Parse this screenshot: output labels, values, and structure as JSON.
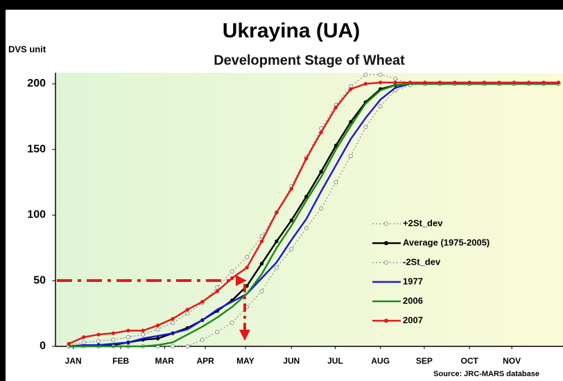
{
  "chart_data": {
    "type": "line",
    "title": "Ukrayina (UA)",
    "subtitle": "Development Stage of Wheat",
    "y_label": "DVS unit",
    "source": "Source: JRC-MARS database",
    "x": [
      1,
      2,
      3,
      4,
      5,
      6,
      7,
      8,
      9,
      10,
      11,
      12,
      13,
      14,
      15,
      16,
      17,
      18,
      19,
      20,
      21,
      22,
      23,
      24,
      25,
      26,
      27,
      28,
      29,
      30,
      31,
      32,
      33,
      34
    ],
    "xlim": [
      0.1,
      34.3
    ],
    "xticks": [
      {
        "value": 1.3,
        "label": "JAN"
      },
      {
        "value": 4.5,
        "label": "FEB"
      },
      {
        "value": 7.45,
        "label": "MAR"
      },
      {
        "value": 10.2,
        "label": "APR"
      },
      {
        "value": 12.9,
        "label": "MAY"
      },
      {
        "value": 16.0,
        "label": "JUN"
      },
      {
        "value": 18.95,
        "label": "JUL"
      },
      {
        "value": 22.0,
        "label": "AUG"
      },
      {
        "value": 24.95,
        "label": "SEP"
      },
      {
        "value": 28.0,
        "label": "OCT"
      },
      {
        "value": 30.85,
        "label": "NOV"
      }
    ],
    "ylim": [
      0,
      200
    ],
    "yticks": [
      0,
      50,
      100,
      150,
      200
    ],
    "series": [
      {
        "name": "+2St_dev",
        "color": "#888888",
        "values": [
          1,
          3,
          4,
          5,
          7,
          9,
          13,
          18,
          25,
          33,
          45,
          57,
          68,
          84,
          102,
          122,
          144,
          166,
          184,
          198,
          207,
          207,
          204,
          200,
          200,
          200,
          200,
          200,
          200,
          200,
          200,
          200,
          200,
          200
        ]
      },
      {
        "name": "Average (1975-2005)",
        "color": "#000000",
        "values": [
          0,
          0,
          1,
          1,
          3,
          5,
          6,
          10,
          14,
          20,
          27,
          35,
          46,
          63,
          80,
          96,
          114,
          133,
          153,
          171,
          186,
          196,
          199,
          200,
          200,
          200,
          200,
          200,
          200,
          200,
          200,
          200,
          200,
          200
        ]
      },
      {
        "name": "-2St_dev",
        "color": "#888888",
        "values": [
          0,
          0,
          0,
          0,
          0,
          0,
          0,
          0,
          0,
          5,
          11,
          18,
          30,
          42,
          60,
          74,
          90,
          105,
          125,
          145,
          167,
          183,
          195,
          199,
          200,
          200,
          200,
          200,
          200,
          200,
          200,
          200,
          200,
          200
        ]
      },
      {
        "name": "1977",
        "color": "#1a1adc",
        "values": [
          0,
          1,
          1,
          2,
          3,
          6,
          8,
          10,
          13,
          20,
          28,
          34,
          40,
          52,
          64,
          81,
          97,
          118,
          138,
          158,
          174,
          188,
          197,
          200,
          200,
          200,
          200,
          200,
          200,
          200,
          200,
          200,
          200,
          200
        ]
      },
      {
        "name": "2006",
        "color": "#1a8a1a",
        "values": [
          0,
          0,
          0,
          0,
          0,
          0,
          1,
          3,
          9,
          15,
          22,
          30,
          40,
          55,
          75,
          92,
          111,
          129,
          150,
          168,
          185,
          195,
          199,
          200,
          200,
          200,
          200,
          200,
          200,
          200,
          200,
          200,
          200,
          200
        ]
      },
      {
        "name": "2007",
        "color": "#e01a1a",
        "values": [
          2,
          7,
          9,
          10,
          12,
          12,
          16,
          21,
          28,
          34,
          42,
          52,
          60,
          80,
          102,
          120,
          143,
          163,
          182,
          196,
          200,
          201,
          201,
          201,
          201,
          201,
          201,
          201,
          201,
          201,
          201,
          201,
          201,
          201
        ]
      }
    ]
  }
}
